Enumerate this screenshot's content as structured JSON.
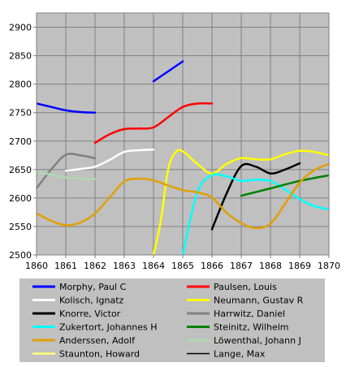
{
  "chart_data": {
    "type": "line",
    "title": "",
    "xlabel": "",
    "ylabel": "",
    "xlim": [
      1860,
      1870
    ],
    "ylim": [
      2500,
      2925
    ],
    "x_ticks": [
      "1860",
      "1861",
      "1862",
      "1863",
      "1864",
      "1865",
      "1866",
      "1867",
      "1868",
      "1869",
      "1870"
    ],
    "y_ticks": [
      "2500",
      "2550",
      "2600",
      "2650",
      "2700",
      "2750",
      "2800",
      "2850",
      "2900"
    ],
    "grid": true,
    "plot_background": "#c0c0c0",
    "legend_position": "bottom",
    "legend_background": "#c0c0c0",
    "series": [
      {
        "name": "Morphy, Paul C",
        "color": "#0000ff",
        "width": 2.5,
        "points": [
          [
            1860,
            2766
          ],
          [
            1860.5,
            2760
          ],
          [
            1861,
            2754
          ],
          [
            1861.5,
            2751
          ],
          [
            1862,
            2750
          ]
        ]
      },
      {
        "name": "Morphy, Paul C",
        "color": "#0000ff",
        "width": 2.5,
        "legend": false,
        "points": [
          [
            1864,
            2805
          ],
          [
            1865,
            2840
          ]
        ]
      },
      {
        "name": "Paulsen, Louis",
        "color": "#ff0000",
        "width": 2.5,
        "points": [
          [
            1862,
            2697
          ],
          [
            1862.5,
            2712
          ],
          [
            1863,
            2721
          ],
          [
            1863.5,
            2722
          ],
          [
            1864,
            2724
          ],
          [
            1864.5,
            2742
          ],
          [
            1865,
            2760
          ],
          [
            1865.5,
            2766
          ],
          [
            1866,
            2766
          ]
        ]
      },
      {
        "name": "Kolisch, Ignatz",
        "color": "#ffffff",
        "width": 2.5,
        "points": [
          [
            1861,
            2648
          ],
          [
            1861.5,
            2651
          ],
          [
            1862,
            2655
          ],
          [
            1862.5,
            2667
          ],
          [
            1863,
            2681
          ],
          [
            1863.5,
            2684
          ],
          [
            1864,
            2685
          ]
        ]
      },
      {
        "name": "Neumann, Gustav R",
        "color": "#ffff00",
        "width": 2.5,
        "points": [
          [
            1864,
            2500
          ],
          [
            1864.25,
            2560
          ],
          [
            1864.5,
            2650
          ],
          [
            1864.75,
            2680
          ],
          [
            1865,
            2682
          ],
          [
            1865.5,
            2660
          ],
          [
            1866,
            2643
          ],
          [
            1866.5,
            2660
          ],
          [
            1867,
            2670
          ],
          [
            1867.5,
            2668
          ],
          [
            1868,
            2668
          ],
          [
            1868.5,
            2677
          ],
          [
            1869,
            2683
          ],
          [
            1869.5,
            2681
          ],
          [
            1870,
            2675
          ]
        ]
      },
      {
        "name": "Knorre, Victor",
        "color": "#000000",
        "width": 2.5,
        "points": [
          [
            1866,
            2545
          ],
          [
            1866.5,
            2608
          ],
          [
            1867,
            2656
          ],
          [
            1867.5,
            2655
          ],
          [
            1868,
            2643
          ],
          [
            1868.5,
            2650
          ],
          [
            1869,
            2661
          ]
        ]
      },
      {
        "name": "Harrwitz, Daniel",
        "color": "#808080",
        "width": 2.5,
        "points": [
          [
            1860,
            2617
          ],
          [
            1860.5,
            2650
          ],
          [
            1861,
            2676
          ],
          [
            1861.5,
            2675
          ],
          [
            1862,
            2670
          ]
        ]
      },
      {
        "name": "Zukertort, Johannes H",
        "color": "#00ffff",
        "width": 2.5,
        "points": [
          [
            1865,
            2500
          ],
          [
            1865.5,
            2610
          ],
          [
            1866,
            2640
          ],
          [
            1866.5,
            2638
          ],
          [
            1867,
            2630
          ],
          [
            1867.5,
            2632
          ],
          [
            1868,
            2630
          ],
          [
            1868.5,
            2615
          ],
          [
            1869,
            2598
          ],
          [
            1869.5,
            2586
          ],
          [
            1870,
            2580
          ]
        ]
      },
      {
        "name": "Steinitz, Wilhelm",
        "color": "#008000",
        "width": 2.5,
        "points": [
          [
            1867,
            2604
          ],
          [
            1868,
            2617
          ],
          [
            1869,
            2630
          ],
          [
            1870,
            2640
          ]
        ]
      },
      {
        "name": "Anderssen, Adolf",
        "color": "#e0a000",
        "width": 2.5,
        "points": [
          [
            1860,
            2573
          ],
          [
            1860.5,
            2560
          ],
          [
            1861,
            2552
          ],
          [
            1861.5,
            2557
          ],
          [
            1862,
            2573
          ],
          [
            1862.5,
            2601
          ],
          [
            1863,
            2629
          ],
          [
            1863.5,
            2634
          ],
          [
            1864,
            2631
          ],
          [
            1864.5,
            2622
          ],
          [
            1865,
            2614
          ],
          [
            1865.5,
            2610
          ],
          [
            1866,
            2601
          ],
          [
            1866.5,
            2574
          ],
          [
            1867,
            2556
          ],
          [
            1867.5,
            2547
          ],
          [
            1868,
            2555
          ],
          [
            1868.5,
            2590
          ],
          [
            1869,
            2627
          ],
          [
            1869.5,
            2649
          ],
          [
            1870,
            2660
          ]
        ]
      },
      {
        "name": "Löwenthal, Johann J",
        "color": "#b0d8b0",
        "width": 2.5,
        "points": [
          [
            1860,
            2646
          ],
          [
            1860.5,
            2641
          ],
          [
            1861,
            2636
          ],
          [
            1861.5,
            2634
          ],
          [
            1862,
            2633
          ]
        ]
      },
      {
        "name": "Staunton, Howard",
        "color": "#ffff80",
        "width": 2,
        "points": []
      },
      {
        "name": "Lange, Max",
        "color": "#000000",
        "width": 1,
        "points": []
      }
    ]
  }
}
